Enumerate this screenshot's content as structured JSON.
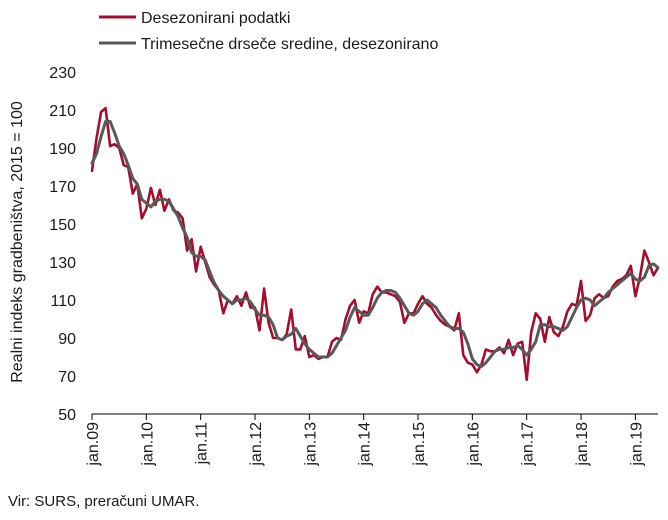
{
  "chart_data": {
    "type": "line",
    "title": "",
    "xlabel": "",
    "ylabel": "Realni indeks gradbeništva, 2015 = 100",
    "ylim": [
      50,
      230
    ],
    "yticks": [
      50,
      70,
      90,
      110,
      130,
      150,
      170,
      190,
      210,
      230
    ],
    "x_start": "jan.09",
    "x_tick_labels": [
      "jan.09",
      "jan.10",
      "jan.11",
      "jan.12",
      "jan.13",
      "jan.14",
      "jan.15",
      "jan.16",
      "jan.17",
      "jan.18",
      "jan.19"
    ],
    "grid": false,
    "legend": "top-left",
    "series": [
      {
        "name": "Desezonirani podatki",
        "color": "#a50d2c",
        "values": [
          178,
          195,
          209,
          211,
          191,
          192,
          190,
          181,
          180,
          166,
          171,
          153,
          158,
          169,
          160,
          168,
          157,
          163,
          157,
          156,
          153,
          136,
          142,
          125,
          138,
          130,
          122,
          118,
          115,
          103,
          110,
          108,
          112,
          107,
          114,
          106,
          106,
          94,
          116,
          98,
          90,
          90,
          89,
          92,
          105,
          84,
          84,
          91,
          80,
          81,
          79,
          80,
          80,
          88,
          90,
          89,
          100,
          107,
          110,
          98,
          104,
          103,
          113,
          117,
          114,
          114,
          113,
          112,
          109,
          98,
          103,
          103,
          108,
          112,
          108,
          106,
          102,
          99,
          97,
          96,
          94,
          103,
          81,
          77,
          76,
          72,
          76,
          84,
          83,
          83,
          85,
          82,
          89,
          81,
          87,
          88,
          68,
          93,
          103,
          100,
          88,
          101,
          93,
          91,
          96,
          104,
          108,
          107,
          120,
          99,
          102,
          111,
          113,
          111,
          112,
          117,
          120,
          121,
          123,
          128,
          112,
          122,
          136,
          130,
          123,
          127
        ]
      },
      {
        "name": "Trimesečne drseče sredine, desezonirano",
        "color": "#595959",
        "values": [
          182,
          187,
          196,
          204,
          204,
          198,
          191,
          187,
          181,
          174,
          171,
          163,
          161,
          159,
          162,
          163,
          163,
          162,
          158,
          154,
          148,
          143,
          135,
          133,
          133,
          131,
          125,
          119,
          115,
          112,
          110,
          108,
          110,
          110,
          111,
          109,
          105,
          102,
          102,
          101,
          97,
          90,
          89,
          91,
          92,
          95,
          91,
          87,
          84,
          82,
          80,
          80,
          80,
          82,
          86,
          90,
          94,
          101,
          106,
          104,
          102,
          102,
          106,
          111,
          114,
          115,
          115,
          114,
          111,
          107,
          103,
          102,
          104,
          108,
          110,
          108,
          106,
          102,
          99,
          96,
          95,
          95,
          93,
          87,
          79,
          76,
          75,
          77,
          80,
          83,
          84,
          84,
          85,
          85,
          86,
          84,
          81,
          84,
          88,
          97,
          97,
          96,
          96,
          95,
          94,
          96,
          101,
          106,
          110,
          111,
          110,
          107,
          109,
          111,
          114,
          116,
          118,
          120,
          122,
          124,
          121,
          120,
          122,
          128,
          129,
          127
        ]
      }
    ]
  },
  "source_note": "Vir: SURS, preračuni UMAR."
}
